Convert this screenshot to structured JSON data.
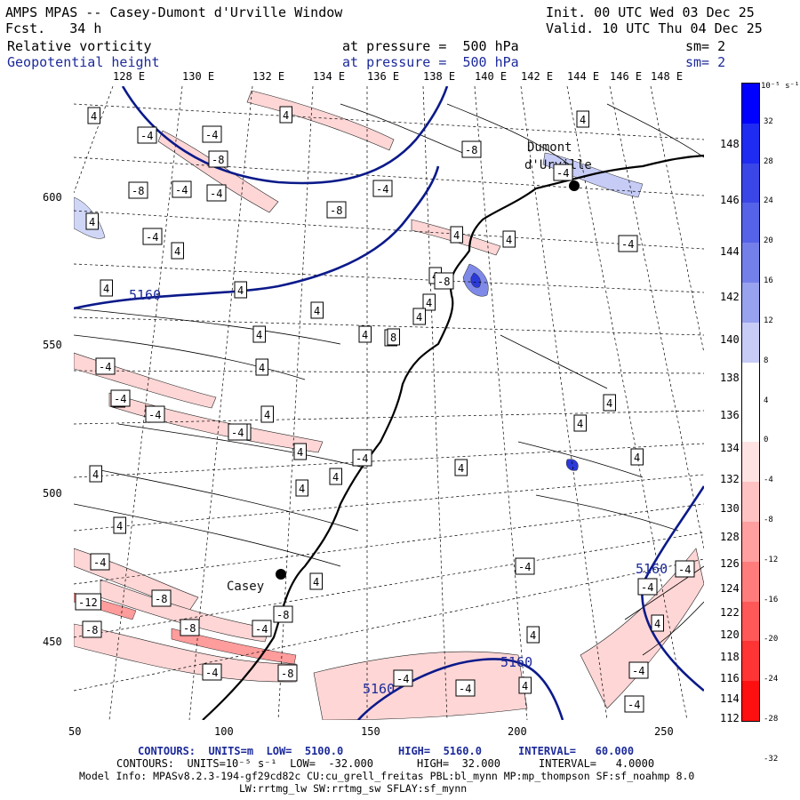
{
  "header": {
    "title": "AMPS MPAS -- Casey-Dumont d'Urville Window",
    "fcst": "Fcst.   34 h",
    "init": "Init. 00 UTC Wed 03 Dec 25",
    "valid": "Valid. 10 UTC Thu 04 Dec 25",
    "field1": "Relative vorticity",
    "field1_level": "at pressure =  500 hPa",
    "field1_sm": "sm= 2",
    "field2": "Geopotential height",
    "field2_level": "at pressure =  500 hPa",
    "field2_sm": "sm= 2"
  },
  "lon_labels": [
    "128 E",
    "130 E",
    "132 E",
    "134 E",
    "136 E",
    "138 E",
    "140 E",
    "142 E",
    "144 E",
    "146 E",
    "148 E"
  ],
  "lat_labels": [
    "148 E",
    "146 E",
    "144 E",
    "142 E",
    "140 E",
    "138 E",
    "136 E",
    "134 E",
    "132 E",
    "130 E",
    "128 E",
    "126 E",
    "124 E",
    "122 E",
    "120 E",
    "118 E",
    "116 E",
    "114 E",
    "112 E"
  ],
  "y_axis": [
    "600",
    "550",
    "500",
    "450"
  ],
  "x_axis": [
    "50",
    "100",
    "150",
    "200",
    "250"
  ],
  "colorbar": {
    "unit": "10⁻⁵ s⁻¹",
    "labels": [
      "32",
      "28",
      "24",
      "20",
      "16",
      "12",
      "8",
      "4",
      "0",
      "-4",
      "-8",
      "-12",
      "-16",
      "-20",
      "-24",
      "-28",
      "-32"
    ],
    "colors": [
      "#0000ff",
      "#1f2bf0",
      "#3a46e6",
      "#5563e8",
      "#7480ea",
      "#98a2ef",
      "#c6ccf6",
      "#ffffff",
      "#ffffff",
      "#ffe3e3",
      "#ffc2c2",
      "#ff9f9f",
      "#ff7c7c",
      "#ff5858",
      "#ff3434",
      "#ff1010"
    ]
  },
  "places": {
    "dumont1": "Dumont",
    "dumont2": "d'Urville",
    "casey": "Casey"
  },
  "height_labels": [
    "5160",
    "5160",
    "5160",
    "5160"
  ],
  "vort_labels": [
    "4",
    "-4",
    "4",
    "-4",
    "-8",
    "-8",
    "-4",
    "-4",
    "4",
    "-4",
    "-8",
    "-4",
    "4",
    "4",
    "4",
    "8",
    "4",
    "4",
    "4",
    "4",
    "-8",
    "-4",
    "-4",
    "-8",
    "4",
    "4",
    "4",
    "4",
    "4",
    "4",
    "4",
    "4",
    "4",
    "4",
    "4",
    "4",
    "4",
    "4",
    "4",
    "-4",
    "-4",
    "4",
    "-4",
    "-12",
    "-8",
    "-8",
    "-8",
    "-4",
    "-4",
    "-4",
    "-4",
    "-4",
    "-4",
    "-8",
    "-4",
    "-4",
    "4",
    "-4",
    "-4",
    "-4",
    "4",
    "-4",
    "-4",
    "-8",
    "4",
    "4",
    "4",
    "8"
  ],
  "footer": {
    "line1_a": "CONTOURS:  UNITS=m  LOW=  5100.0",
    "line1_b": "HIGH=  5160.0",
    "line1_c": "INTERVAL=   60.000",
    "line2_a": "CONTOURS:  UNITS=10⁻⁵ s⁻¹  LOW=  -32.000",
    "line2_b": "HIGH=  32.000",
    "line2_c": "INTERVAL=   4.0000",
    "line3": "Model Info: MPASv8.2.3-194-gf29cd82c CU:cu_grell_freitas PBL:bl_mynn MP:mp_thompson SF:sf_noahmp 8.0",
    "line4": "LW:rrtmg_lw SW:rrtmg_sw SFLAY:sf_mynn"
  }
}
